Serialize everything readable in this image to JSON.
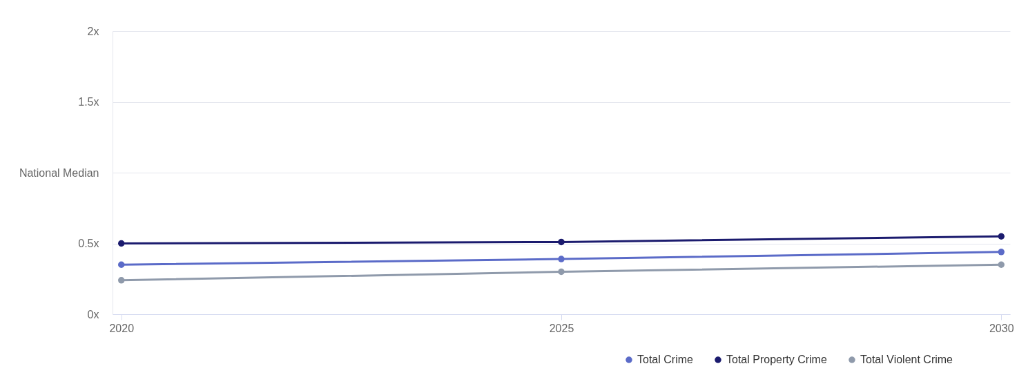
{
  "chart_data": {
    "type": "line",
    "x": [
      2020,
      2025,
      2030
    ],
    "xlim": [
      2019.9,
      2030.1
    ],
    "xticks": [
      2020,
      2025,
      2030
    ],
    "ylim": [
      0,
      2
    ],
    "yticks": [
      {
        "value": 0,
        "label": "0x"
      },
      {
        "value": 0.5,
        "label": "0.5x"
      },
      {
        "value": 1,
        "label": "National Median"
      },
      {
        "value": 1.5,
        "label": "1.5x"
      },
      {
        "value": 2,
        "label": "2x"
      }
    ],
    "series": [
      {
        "name": "Total Crime",
        "color": "#5b6bc8",
        "values": [
          0.35,
          0.39,
          0.44
        ]
      },
      {
        "name": "Total Property Crime",
        "color": "#1b1b6e",
        "values": [
          0.5,
          0.51,
          0.55
        ]
      },
      {
        "name": "Total Violent Crime",
        "color": "#8f9aab",
        "values": [
          0.24,
          0.3,
          0.35
        ]
      }
    ],
    "grid": "y",
    "legend": "bottom right",
    "marker": "circle",
    "line_style": "solid"
  }
}
